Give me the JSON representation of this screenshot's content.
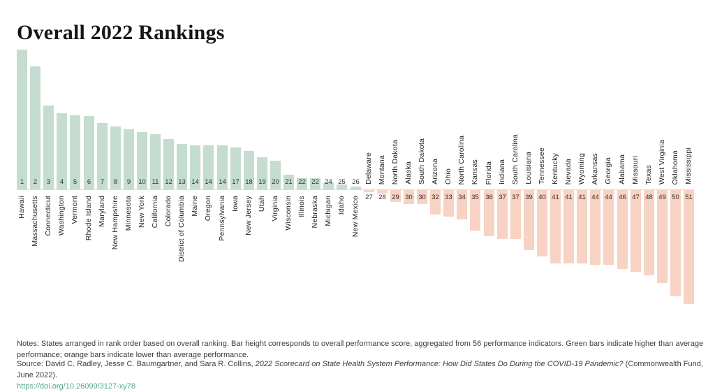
{
  "title": "Overall 2022 Rankings",
  "theme": {
    "green_bar_color": "#c5dcd1",
    "orange_bar_color": "#f8d2c3",
    "link_color": "#53a88c"
  },
  "chart_data": {
    "type": "bar",
    "title": "Overall 2022 Rankings",
    "orientation": "diverging-vertical",
    "legend": "Green bars = higher than average performance (drawn upward); orange bars = lower than average performance (drawn downward). No numeric value axis is shown; values below are bar lengths in screen pixels estimated from the figure (positive = up/green, negative = down/orange).",
    "states": [
      {
        "rank": 1,
        "name": "Hawaii",
        "value": 200
      },
      {
        "rank": 2,
        "name": "Massachusetts",
        "value": 176
      },
      {
        "rank": 3,
        "name": "Connecticut",
        "value": 120
      },
      {
        "rank": 4,
        "name": "Washington",
        "value": 109
      },
      {
        "rank": 5,
        "name": "Vermont",
        "value": 106
      },
      {
        "rank": 6,
        "name": "Rhode Island",
        "value": 105
      },
      {
        "rank": 7,
        "name": "Maryland",
        "value": 95
      },
      {
        "rank": 8,
        "name": "New Hampshire",
        "value": 90
      },
      {
        "rank": 9,
        "name": "Minnesota",
        "value": 86
      },
      {
        "rank": 10,
        "name": "New York",
        "value": 82
      },
      {
        "rank": 11,
        "name": "California",
        "value": 79
      },
      {
        "rank": 12,
        "name": "Colorado",
        "value": 72
      },
      {
        "rank": 13,
        "name": "District of Columbia",
        "value": 65
      },
      {
        "rank": 14,
        "name": "Maine",
        "value": 63
      },
      {
        "rank": 14,
        "name": "Oregon",
        "value": 63
      },
      {
        "rank": 14,
        "name": "Pennsylvania",
        "value": 63
      },
      {
        "rank": 17,
        "name": "Iowa",
        "value": 60
      },
      {
        "rank": 18,
        "name": "New Jersey",
        "value": 55
      },
      {
        "rank": 19,
        "name": "Utah",
        "value": 46
      },
      {
        "rank": 20,
        "name": "Virginia",
        "value": 41
      },
      {
        "rank": 21,
        "name": "Wisconsin",
        "value": 21
      },
      {
        "rank": 22,
        "name": "Illinois",
        "value": 16
      },
      {
        "rank": 22,
        "name": "Nebraska",
        "value": 16
      },
      {
        "rank": 24,
        "name": "Michigan",
        "value": 10
      },
      {
        "rank": 25,
        "name": "Idaho",
        "value": 7
      },
      {
        "rank": 26,
        "name": "New Mexico",
        "value": 4
      },
      {
        "rank": 27,
        "name": "Delaware",
        "value": -3
      },
      {
        "rank": 28,
        "name": "Montana",
        "value": -5
      },
      {
        "rank": 29,
        "name": "North Dakota",
        "value": -17
      },
      {
        "rank": 30,
        "name": "Alaska",
        "value": -20
      },
      {
        "rank": 30,
        "name": "South Dakota",
        "value": -20
      },
      {
        "rank": 32,
        "name": "Arizona",
        "value": -35
      },
      {
        "rank": 33,
        "name": "Ohio",
        "value": -38
      },
      {
        "rank": 34,
        "name": "North Carolina",
        "value": -42
      },
      {
        "rank": 35,
        "name": "Kansas",
        "value": -58
      },
      {
        "rank": 36,
        "name": "Florida",
        "value": -66
      },
      {
        "rank": 37,
        "name": "Indiana",
        "value": -70
      },
      {
        "rank": 37,
        "name": "South Carolina",
        "value": -70
      },
      {
        "rank": 39,
        "name": "Louisiana",
        "value": -86
      },
      {
        "rank": 40,
        "name": "Tennessee",
        "value": -95
      },
      {
        "rank": 41,
        "name": "Kentucky",
        "value": -105
      },
      {
        "rank": 41,
        "name": "Nevada",
        "value": -105
      },
      {
        "rank": 41,
        "name": "Wyoming",
        "value": -105
      },
      {
        "rank": 44,
        "name": "Arkansas",
        "value": -107
      },
      {
        "rank": 44,
        "name": "Georgia",
        "value": -107
      },
      {
        "rank": 46,
        "name": "Alabama",
        "value": -113
      },
      {
        "rank": 47,
        "name": "Missouri",
        "value": -117
      },
      {
        "rank": 48,
        "name": "Texas",
        "value": -122
      },
      {
        "rank": 49,
        "name": "West Virginia",
        "value": -133
      },
      {
        "rank": 50,
        "name": "Oklahoma",
        "value": -152
      },
      {
        "rank": 51,
        "name": "Mississippi",
        "value": -163
      }
    ]
  },
  "notes": "Notes: States arranged in rank order based on overall ranking. Bar height corresponds to overall performance score, aggregated from 56 performance indicators. Green bars indicate higher than average performance; orange bars indicate lower than average performance.",
  "source": {
    "prefix": "Source: David C. Radley, Jesse C. Baumgartner, and Sara R. Collins, ",
    "italic": "2022 Scorecard on State Health System Performance: How Did States Do During the COVID-19 Pandemic?",
    "suffix": " (Commonwealth Fund, June 2022).",
    "link": "https://doi.org/10.26099/3127-xy78"
  }
}
